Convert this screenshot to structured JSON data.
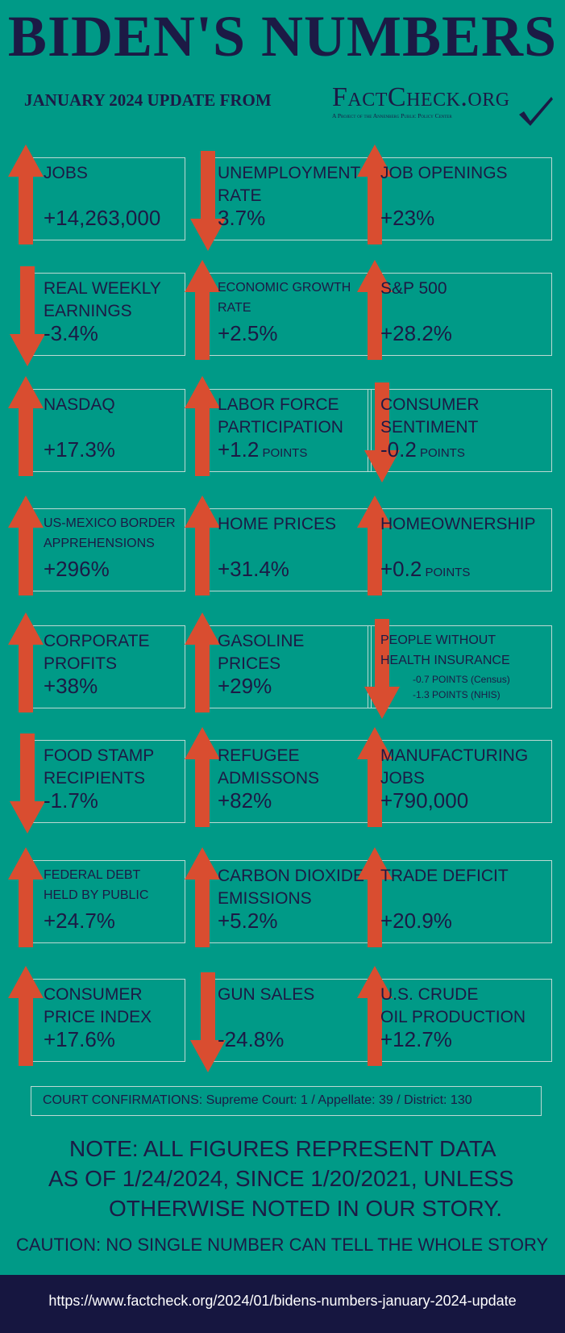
{
  "title": "BIDEN'S NUMBERS",
  "subtitle": "JANUARY 2024 UPDATE FROM",
  "logo": {
    "name": "FactCheck.org",
    "tagline": "A Project of the Annenberg Public Policy Center"
  },
  "colors": {
    "background": "#009a87",
    "text": "#1c1a45",
    "arrow": "#d94d30",
    "footer": "#161640",
    "box_border": "#bcd9d3"
  },
  "cards": [
    {
      "label": [
        "JOBS"
      ],
      "value": "+14,263,000",
      "direction": "up"
    },
    {
      "label": [
        "UNEMPLOYMENT",
        "RATE"
      ],
      "value": "3.7%",
      "direction": "down"
    },
    {
      "label": [
        "JOB OPENINGS"
      ],
      "value": "+23%",
      "direction": "up"
    },
    {
      "label": [
        "REAL WEEKLY",
        "EARNINGS"
      ],
      "value": "-3.4%",
      "direction": "down"
    },
    {
      "label": [
        "ECONOMIC GROWTH",
        "RATE"
      ],
      "value": "+2.5%",
      "direction": "up"
    },
    {
      "label": [
        "S&P 500"
      ],
      "value": "+28.2%",
      "direction": "up"
    },
    {
      "label": [
        "NASDAQ"
      ],
      "value": "+17.3%",
      "direction": "up"
    },
    {
      "label": [
        "LABOR FORCE",
        "PARTICIPATION"
      ],
      "value": "+1.2",
      "unit": "POINTS",
      "direction": "up"
    },
    {
      "label": [
        "CONSUMER",
        "SENTIMENT"
      ],
      "value": "-0.2",
      "unit": "POINTS",
      "direction": "down"
    },
    {
      "label": [
        "US-MEXICO BORDER",
        "APPREHENSIONS"
      ],
      "value": "+296%",
      "direction": "up"
    },
    {
      "label": [
        "HOME PRICES"
      ],
      "value": "+31.4%",
      "direction": "up"
    },
    {
      "label": [
        "HOMEOWNERSHIP"
      ],
      "value": "+0.2",
      "unit": "POINTS",
      "direction": "up"
    },
    {
      "label": [
        "CORPORATE",
        "PROFITS"
      ],
      "value": "+38%",
      "direction": "up"
    },
    {
      "label": [
        "GASOLINE",
        "PRICES"
      ],
      "value": "+29%",
      "direction": "up"
    },
    {
      "label": [
        "PEOPLE WITHOUT",
        "HEALTH INSURANCE"
      ],
      "sub": [
        "-0.7 POINTS (Census)",
        "-1.3 POINTS (NHIS)"
      ],
      "direction": "down"
    },
    {
      "label": [
        "FOOD STAMP",
        "RECIPIENTS"
      ],
      "value": "-1.7%",
      "direction": "down"
    },
    {
      "label": [
        "REFUGEE",
        "ADMISSONS"
      ],
      "value": "+82%",
      "direction": "up"
    },
    {
      "label": [
        "MANUFACTURING",
        "JOBS"
      ],
      "value": "+790,000",
      "direction": "up"
    },
    {
      "label": [
        "FEDERAL DEBT",
        "HELD BY PUBLIC"
      ],
      "value": "+24.7%",
      "direction": "up"
    },
    {
      "label": [
        "CARBON DIOXIDE",
        "EMISSIONS"
      ],
      "value": "+5.2%",
      "direction": "up"
    },
    {
      "label": [
        "TRADE DEFICIT"
      ],
      "value": "+20.9%",
      "direction": "up"
    },
    {
      "label": [
        "CONSUMER",
        "PRICE INDEX"
      ],
      "value": "+17.6%",
      "direction": "up"
    },
    {
      "label": [
        "GUN SALES"
      ],
      "value": "-24.8%",
      "direction": "down"
    },
    {
      "label": [
        "U.S. CRUDE",
        "OIL PRODUCTION"
      ],
      "value": "+12.7%",
      "direction": "up"
    }
  ],
  "court": "COURT CONFIRMATIONS:  Supreme Court: 1 / Appellate: 39 / District: 130",
  "note": [
    "NOTE:  ALL FIGURES REPRESENT DATA",
    "AS OF 1/24/2024, SINCE 1/20/2021, UNLESS",
    "OTHERWISE NOTED IN OUR STORY."
  ],
  "caution": "CAUTION: NO SINGLE NUMBER CAN TELL THE WHOLE STORY",
  "url": "https://www.factcheck.org/2024/01/bidens-numbers-january-2024-update"
}
